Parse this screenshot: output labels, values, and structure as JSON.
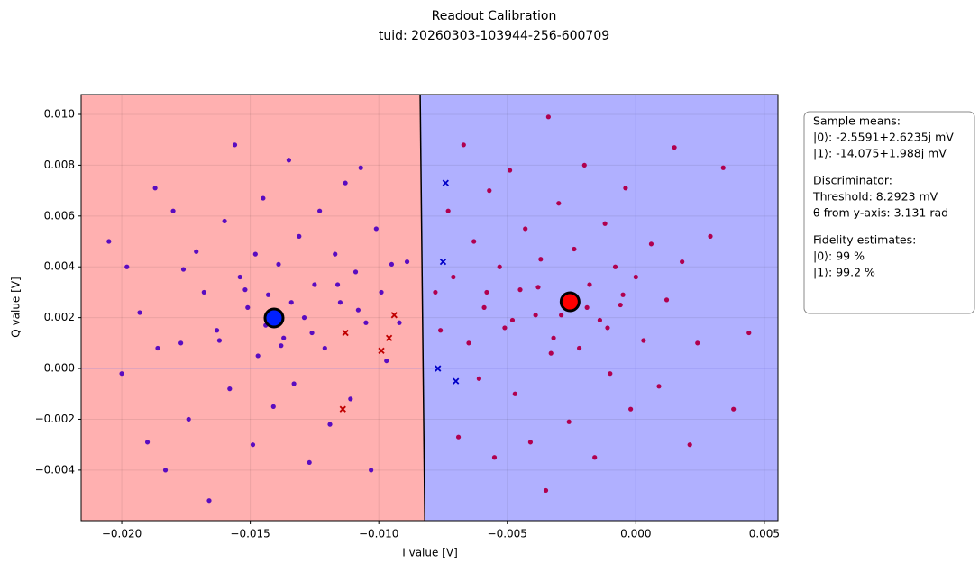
{
  "chart_data": {
    "type": "scatter",
    "title": "Readout Calibration",
    "subtitle": "tuid: 20260303-103944-256-600709",
    "x_label": "I value [V]",
    "y_label": "Q value [V]",
    "xlim": [
      -0.02158,
      0.00553
    ],
    "ylim": [
      -0.00599,
      0.01078
    ],
    "xticks": [
      {
        "value": -0.02,
        "label": "−0.020"
      },
      {
        "value": -0.015,
        "label": "−0.015"
      },
      {
        "value": -0.01,
        "label": "−0.010"
      },
      {
        "value": -0.005,
        "label": "−0.005"
      },
      {
        "value": 0,
        "label": "0.000"
      },
      {
        "value": 0.005,
        "label": "0.005"
      }
    ],
    "yticks": [
      {
        "value": -0.004,
        "label": "−0.004"
      },
      {
        "value": -0.002,
        "label": "−0.002"
      },
      {
        "value": 0,
        "label": "0.000"
      },
      {
        "value": 0.002,
        "label": "0.002"
      },
      {
        "value": 0.004,
        "label": "0.004"
      },
      {
        "value": 0.006,
        "label": "0.006"
      },
      {
        "value": 0.008,
        "label": "0.008"
      },
      {
        "value": 0.01,
        "label": "0.010"
      }
    ],
    "grid": true,
    "region_colors": [
      "#ffb0b0",
      "#b0b0ff"
    ],
    "threshold_line": {
      "x": [
        -0.00839,
        -0.00821
      ],
      "y": [
        0.01078,
        -0.00599
      ]
    },
    "series": [
      {
        "color": "#5a0cc0",
        "marker": "o",
        "x": [
          -0.0205,
          -0.0198,
          -0.0193,
          -0.019,
          -0.0187,
          -0.0183,
          -0.018,
          -0.0177,
          -0.0174,
          -0.0171,
          -0.0168,
          -0.0166,
          -0.0163,
          -0.016,
          -0.0158,
          -0.0156,
          -0.0154,
          -0.0151,
          -0.0149,
          -0.0147,
          -0.0145,
          -0.0143,
          -0.0141,
          -0.0139,
          -0.0137,
          -0.0135,
          -0.0133,
          -0.0131,
          -0.0129,
          -0.0127,
          -0.0125,
          -0.0123,
          -0.0121,
          -0.0119,
          -0.0117,
          -0.0115,
          -0.0113,
          -0.0111,
          -0.0109,
          -0.0107,
          -0.0105,
          -0.0103,
          -0.0101,
          -0.0099,
          -0.0097,
          -0.0095,
          -0.0092,
          -0.0089,
          -0.02,
          -0.0186,
          -0.0176,
          -0.0162,
          -0.0152,
          -0.0144,
          -0.0134,
          -0.0126,
          -0.0116,
          -0.0108,
          -0.0138,
          -0.0148
        ],
        "y": [
          0.005,
          0.004,
          0.0022,
          -0.0029,
          0.0071,
          -0.004,
          0.0062,
          0.001,
          -0.002,
          0.0046,
          0.003,
          -0.0052,
          0.0015,
          0.0058,
          -0.0008,
          0.0088,
          0.0036,
          0.0024,
          -0.003,
          0.0005,
          0.0067,
          0.0029,
          -0.0015,
          0.0041,
          0.0012,
          0.0082,
          -0.0006,
          0.0052,
          0.002,
          -0.0037,
          0.0033,
          0.0062,
          0.0008,
          -0.0022,
          0.0045,
          0.0026,
          0.0073,
          -0.0012,
          0.0038,
          0.0079,
          0.0018,
          -0.004,
          0.0055,
          0.003,
          0.0003,
          0.0041,
          0.0018,
          0.0042,
          -0.0002,
          0.0008,
          0.0039,
          0.0011,
          0.0031,
          0.0017,
          0.0026,
          0.0014,
          0.0033,
          0.0023,
          0.0009,
          0.0045
        ]
      },
      {
        "color": "#b0004f",
        "marker": "o",
        "x": [
          -0.0078,
          -0.0076,
          -0.0073,
          -0.0071,
          -0.0069,
          -0.0067,
          -0.0065,
          -0.0063,
          -0.0061,
          -0.0059,
          -0.0057,
          -0.0055,
          -0.0053,
          -0.0051,
          -0.0049,
          -0.0047,
          -0.0045,
          -0.0043,
          -0.0041,
          -0.0039,
          -0.0037,
          -0.0035,
          -0.0034,
          -0.0032,
          -0.003,
          -0.0028,
          -0.0026,
          -0.0024,
          -0.0022,
          -0.002,
          -0.0018,
          -0.0016,
          -0.0014,
          -0.0012,
          -0.001,
          -0.0008,
          -0.0006,
          -0.0004,
          -0.0002,
          0,
          0.0003,
          0.0006,
          0.0009,
          0.0012,
          0.0015,
          0.0018,
          0.0021,
          0.0024,
          0.0029,
          0.0034,
          0.0038,
          0.0044,
          -0.0058,
          -0.0048,
          -0.0038,
          -0.0029,
          -0.0019,
          -0.0011,
          -0.0005,
          -0.0033
        ],
        "y": [
          0.003,
          0.0015,
          0.0062,
          0.0036,
          -0.0027,
          0.0088,
          0.001,
          0.005,
          -0.0004,
          0.0024,
          0.007,
          -0.0035,
          0.004,
          0.0016,
          0.0078,
          -0.001,
          0.0031,
          0.0055,
          -0.0029,
          0.0021,
          0.0043,
          -0.0048,
          0.0099,
          0.0012,
          0.0065,
          0.0028,
          -0.0021,
          0.0047,
          0.0008,
          0.008,
          0.0033,
          -0.0035,
          0.0019,
          0.0057,
          -0.0002,
          0.004,
          0.0025,
          0.0071,
          -0.0016,
          0.0036,
          0.0011,
          0.0049,
          -0.0007,
          0.0027,
          0.0087,
          0.0042,
          -0.003,
          0.001,
          0.0052,
          0.0079,
          -0.0016,
          0.0014,
          0.003,
          0.0019,
          0.0032,
          0.0021,
          0.0024,
          0.0016,
          0.0029,
          0.0006
        ]
      },
      {
        "color": "#c00000",
        "marker": "x",
        "x": [
          -0.0113,
          -0.0094,
          -0.0096,
          -0.0099,
          -0.0114
        ],
        "y": [
          0.0014,
          0.0021,
          0.0012,
          0.0007,
          -0.0016
        ]
      },
      {
        "color": "#0000c8",
        "marker": "x",
        "x": [
          -0.0074,
          -0.0075,
          -0.0077,
          -0.007
        ],
        "y": [
          0.0073,
          0.0042,
          0,
          -0.0005
        ]
      },
      {
        "color": "#ff0000",
        "marker": "big",
        "x": [
          -0.0025591
        ],
        "y": [
          0.0026235
        ]
      },
      {
        "color": "#0020ff",
        "marker": "big",
        "x": [
          -0.014075
        ],
        "y": [
          0.001988
        ]
      }
    ],
    "annotation": [
      "Sample means:",
      "|0⟩: -2.5591+2.6235j mV",
      "|1⟩: -14.075+1.988j mV",
      "Discriminator:",
      "Threshold: 8.2923 mV",
      "θ from y-axis: 3.131 rad",
      "Fidelity estimates:",
      "|0⟩: 99 %",
      "|1⟩: 99.2 %"
    ]
  }
}
